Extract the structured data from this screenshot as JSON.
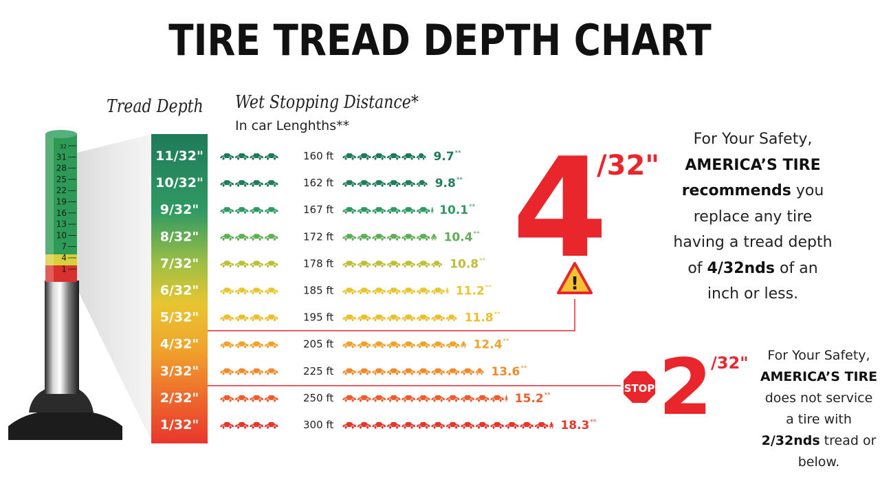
{
  "title": "TIRE TREAD DEPTH CHART",
  "headers": {
    "tread_depth": "Tread Depth",
    "wet_stopping": "Wet Stopping Distance*",
    "car_lengths": "In car Lenghths**"
  },
  "colors": {
    "dark_green": "#1f7a5a",
    "green": "#2e9b5e",
    "yellow": "#e7c832",
    "orange": "#ef9a2b",
    "red": "#e8362d",
    "accent_red": "#e8262b"
  },
  "gauge_labels": [
    "32",
    "31",
    "28",
    "25",
    "22",
    "19",
    "16",
    "13",
    "10",
    "7",
    "4",
    "1"
  ],
  "chart_data": {
    "type": "table",
    "columns": [
      "Tread Depth",
      "Wet Stopping Distance",
      "In car Lenghths"
    ],
    "rows": [
      {
        "depth": "11/32\"",
        "feet": "160 ft",
        "cars": "9.7",
        "mark": "**",
        "car_count": 9.7,
        "color": "#1f7a5a"
      },
      {
        "depth": "10/32\"",
        "feet": "162 ft",
        "cars": "9.8",
        "mark": "**",
        "car_count": 9.8,
        "color": "#237d5c"
      },
      {
        "depth": "9/32\"",
        "feet": "167 ft",
        "cars": "10.1",
        "mark": "**",
        "car_count": 10.1,
        "color": "#2f9a62"
      },
      {
        "depth": "8/32\"",
        "feet": "172 ft",
        "cars": "10.4",
        "mark": "**",
        "car_count": 10.4,
        "color": "#5fae56"
      },
      {
        "depth": "7/32\"",
        "feet": "178 ft",
        "cars": "10.8",
        "mark": "**",
        "car_count": 10.8,
        "color": "#bdbf3b"
      },
      {
        "depth": "6/32\"",
        "feet": "185 ft",
        "cars": "11.2",
        "mark": "**",
        "car_count": 11.2,
        "color": "#e8c531"
      },
      {
        "depth": "5/32\"",
        "feet": "195 ft",
        "cars": "11.8",
        "mark": "**",
        "car_count": 11.8,
        "color": "#ecbe2d"
      },
      {
        "depth": "4/32\"",
        "feet": "205 ft",
        "cars": "12.4",
        "mark": "**",
        "car_count": 12.4,
        "color": "#f0a22b"
      },
      {
        "depth": "3/32\"",
        "feet": "225 ft",
        "cars": "13.6",
        "mark": "**",
        "car_count": 13.6,
        "color": "#f08a2b"
      },
      {
        "depth": "2/32\"",
        "feet": "250 ft",
        "cars": "15.2",
        "mark": "**",
        "car_count": 15.2,
        "color": "#ee5b2c"
      },
      {
        "depth": "1/32\"",
        "feet": "300 ft",
        "cars": "18.3",
        "mark": "**",
        "car_count": 18.3,
        "color": "#e8362d"
      }
    ]
  },
  "big_marks": {
    "four_num": "4",
    "four_frac": "/32\"",
    "two_num": "2",
    "two_frac": "/32\"",
    "stop": "STOP",
    "warning": "!"
  },
  "note1": {
    "l1": "For Your Safety,",
    "l2": "AMERICA’S TIRE",
    "l3a": "recommends",
    "l3b": " you",
    "l4": "replace any tire",
    "l5": "having a tread depth",
    "l6a": "of ",
    "l6b": "4/32nds",
    "l6c": " of an",
    "l7": "inch or less."
  },
  "note2": {
    "l1": "For Your Safety,",
    "l2": "AMERICA’S TIRE",
    "l3": "does not service",
    "l4": "a tire with",
    "l5a": "2/32nds",
    "l5b": " tread or",
    "l6": "below."
  }
}
